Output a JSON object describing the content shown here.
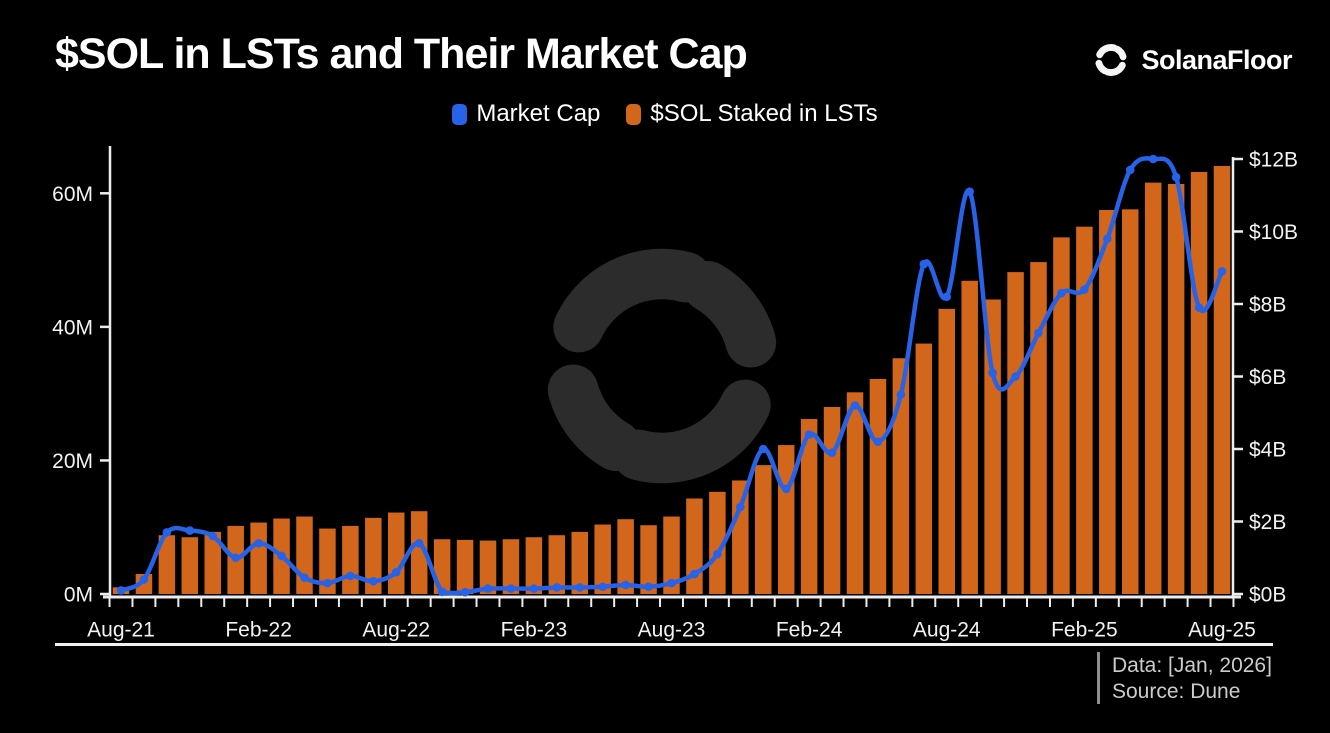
{
  "header": {
    "title": "$SOL in LSTs and Their Market Cap",
    "brand": "SolanaFloor"
  },
  "legend": [
    {
      "label": "Market Cap",
      "color": "#2763e8"
    },
    {
      "label": "$SOL Staked in LSTs",
      "color": "#d2661a"
    }
  ],
  "footer": {
    "data_note": "Data: [Jan, 2026]",
    "source_note": "Source: Dune"
  },
  "chart_data": {
    "type": "bar",
    "title": "$SOL in LSTs and Their Market Cap",
    "categories": [
      "Aug-21",
      "Sep-21",
      "Oct-21",
      "Nov-21",
      "Dec-21",
      "Jan-22",
      "Feb-22",
      "Mar-22",
      "Apr-22",
      "May-22",
      "Jun-22",
      "Jul-22",
      "Aug-22",
      "Sep-22",
      "Oct-22",
      "Nov-22",
      "Dec-22",
      "Jan-23",
      "Feb-23",
      "Mar-23",
      "Apr-23",
      "May-23",
      "Jun-23",
      "Jul-23",
      "Aug-23",
      "Sep-23",
      "Oct-23",
      "Nov-23",
      "Dec-23",
      "Jan-24",
      "Feb-24",
      "Mar-24",
      "Apr-24",
      "May-24",
      "Jun-24",
      "Jul-24",
      "Aug-24",
      "Sep-24",
      "Oct-24",
      "Nov-24",
      "Dec-24",
      "Jan-25",
      "Feb-25",
      "Mar-25",
      "Apr-25",
      "May-25",
      "Jun-25",
      "Jul-25",
      "Aug-25"
    ],
    "series": [
      {
        "name": "$SOL Staked in LSTs",
        "type": "bar",
        "axis": "left",
        "unit": "millions of SOL",
        "color": "#d2661a",
        "values": [
          1.0,
          3.0,
          8.8,
          8.5,
          9.3,
          10.2,
          10.7,
          11.3,
          11.6,
          9.8,
          10.2,
          11.4,
          12.2,
          12.4,
          8.2,
          8.1,
          8.0,
          8.2,
          8.5,
          8.8,
          9.3,
          10.4,
          11.2,
          10.3,
          11.6,
          14.3,
          15.3,
          17.0,
          19.3,
          22.3,
          26.2,
          28.0,
          30.2,
          32.2,
          35.3,
          37.5,
          42.7,
          46.9,
          44.1,
          48.2,
          49.7,
          53.4,
          55.0,
          57.5,
          57.6,
          61.6,
          61.4,
          63.2,
          64.1
        ]
      },
      {
        "name": "Market Cap",
        "type": "line",
        "axis": "right",
        "unit": "$ billions",
        "color": "#2763e8",
        "values": [
          0.1,
          0.4,
          1.7,
          1.75,
          1.6,
          1.0,
          1.4,
          1.05,
          0.45,
          0.3,
          0.5,
          0.35,
          0.6,
          1.4,
          0.06,
          0.05,
          0.15,
          0.15,
          0.15,
          0.18,
          0.18,
          0.2,
          0.25,
          0.2,
          0.3,
          0.55,
          1.1,
          2.4,
          4.0,
          2.9,
          4.4,
          3.9,
          5.2,
          4.2,
          5.5,
          9.1,
          8.2,
          11.1,
          6.1,
          6.0,
          7.2,
          8.3,
          8.4,
          9.8,
          11.7,
          12.0,
          11.5,
          7.9,
          8.9
        ]
      }
    ],
    "x_tick_labels": [
      "Aug-21",
      "Feb-22",
      "Aug-22",
      "Feb-23",
      "Aug-23",
      "Feb-24",
      "Aug-24",
      "Feb-25",
      "Aug-25"
    ],
    "x_label_every": 6,
    "y_left": {
      "ticks": [
        "0M",
        "20M",
        "40M",
        "60M"
      ],
      "values": [
        0,
        20,
        40,
        60
      ],
      "range": [
        0,
        66.5
      ]
    },
    "y_right": {
      "ticks": [
        "$0B",
        "$2B",
        "$4B",
        "$6B",
        "$8B",
        "$10B",
        "$12B"
      ],
      "values": [
        0,
        2,
        4,
        6,
        8,
        10,
        12
      ],
      "range": [
        0,
        12.25
      ]
    },
    "grid": false,
    "legend_position": "top-center",
    "background": "#000000"
  }
}
